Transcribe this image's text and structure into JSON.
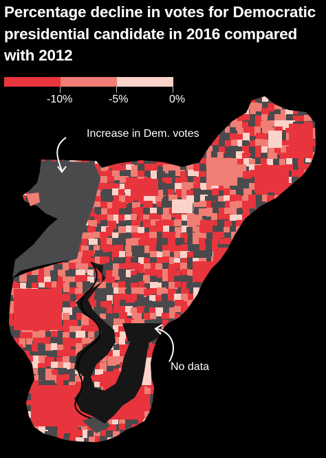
{
  "title": "Percentage decline in votes for Democratic presidential candidate in 2016 compared with  2012",
  "legend": {
    "colors": [
      "#e8343c",
      "#f07e74",
      "#fbd3cb"
    ],
    "labels": [
      "-10%",
      "-5%",
      "0%"
    ]
  },
  "annotations": {
    "increase": "Increase in Dem. votes",
    "no_data": "No data"
  },
  "colors": {
    "background": "#000000",
    "increase": "#4a4a4c",
    "no_data": "#161616",
    "strong_decline": "#e8343c",
    "medium_decline": "#f07e74",
    "light_decline": "#fbd3cb"
  }
}
